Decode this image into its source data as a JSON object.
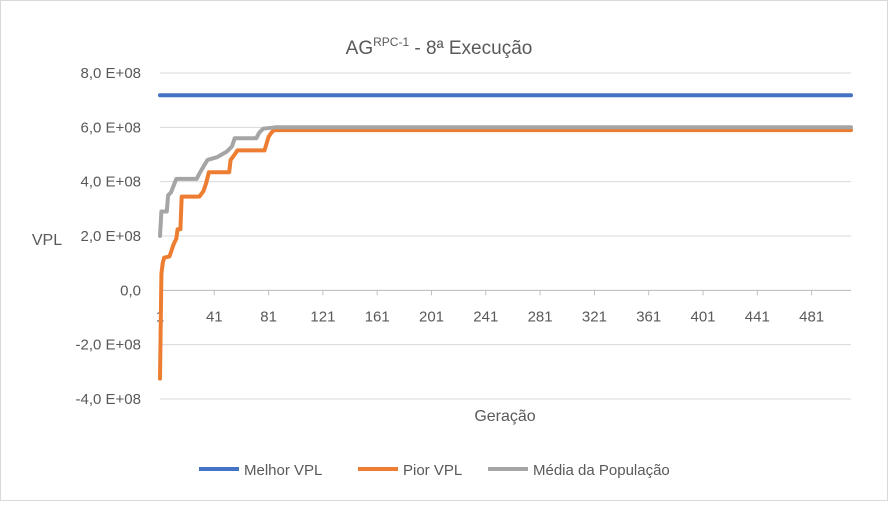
{
  "chart_data": {
    "type": "line",
    "title": {
      "main": "AG",
      "superscript": "RPC-1",
      "suffix": " - 8ª Execução"
    },
    "xlabel": "Geração",
    "ylabel": "VPL",
    "xlim": [
      1,
      510
    ],
    "x_ticks": [
      "1",
      "41",
      "81",
      "121",
      "161",
      "201",
      "241",
      "281",
      "321",
      "361",
      "401",
      "441",
      "481"
    ],
    "ylim": [
      -400000000,
      800000000
    ],
    "y_ticks": [
      {
        "value": 800000000,
        "label": "8,0 E+08"
      },
      {
        "value": 600000000,
        "label": "6,0 E+08"
      },
      {
        "value": 400000000,
        "label": "4,0 E+08"
      },
      {
        "value": 200000000,
        "label": "2,0 E+08"
      },
      {
        "value": 0,
        "label": "0,0"
      },
      {
        "value": -200000000,
        "label": "-2,0 E+08"
      },
      {
        "value": -400000000,
        "label": "-4,0 E+08"
      }
    ],
    "grid": true,
    "legend_position": "bottom",
    "series": [
      {
        "name": "Melhor VPL",
        "color": "#4472c4",
        "points": [
          [
            1,
            718000000
          ],
          [
            510,
            718000000
          ]
        ]
      },
      {
        "name": "Pior VPL",
        "color": "#ed7d31",
        "points": [
          [
            1,
            -325000000
          ],
          [
            2,
            60000000
          ],
          [
            3,
            100000000
          ],
          [
            4,
            120000000
          ],
          [
            8,
            125000000
          ],
          [
            11,
            170000000
          ],
          [
            13,
            190000000
          ],
          [
            14,
            225000000
          ],
          [
            16,
            225000000
          ],
          [
            17,
            345000000
          ],
          [
            30,
            345000000
          ],
          [
            33,
            365000000
          ],
          [
            35,
            395000000
          ],
          [
            37,
            435000000
          ],
          [
            52,
            435000000
          ],
          [
            53,
            480000000
          ],
          [
            56,
            500000000
          ],
          [
            58,
            515000000
          ],
          [
            78,
            515000000
          ],
          [
            81,
            565000000
          ],
          [
            83,
            580000000
          ],
          [
            85,
            590000000
          ],
          [
            510,
            590000000
          ]
        ]
      },
      {
        "name": "Média da População",
        "color": "#a5a5a5",
        "points": [
          [
            1,
            200000000
          ],
          [
            2,
            290000000
          ],
          [
            6,
            290000000
          ],
          [
            7,
            350000000
          ],
          [
            9,
            360000000
          ],
          [
            11,
            385000000
          ],
          [
            13,
            410000000
          ],
          [
            28,
            410000000
          ],
          [
            30,
            430000000
          ],
          [
            33,
            455000000
          ],
          [
            36,
            480000000
          ],
          [
            43,
            490000000
          ],
          [
            50,
            510000000
          ],
          [
            54,
            530000000
          ],
          [
            56,
            560000000
          ],
          [
            72,
            560000000
          ],
          [
            74,
            580000000
          ],
          [
            77,
            595000000
          ],
          [
            86,
            600000000
          ],
          [
            510,
            600000000
          ]
        ]
      }
    ]
  }
}
